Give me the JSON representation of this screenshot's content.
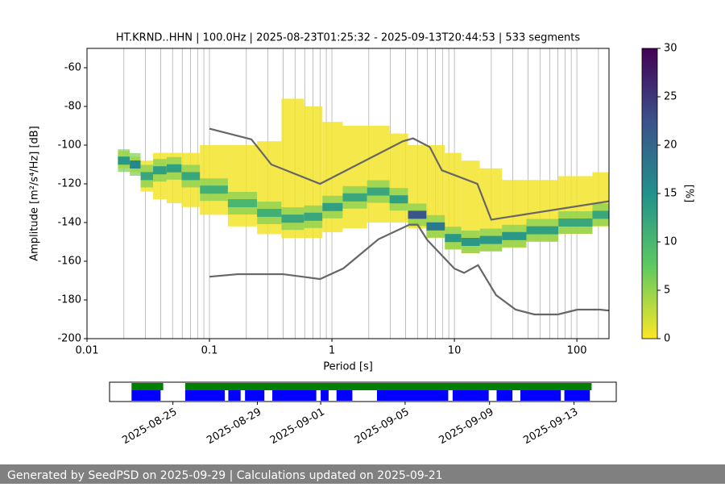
{
  "chart_data": {
    "type": "ppsd",
    "title": "HT.KRND..HHN | 100.0Hz | 2025-08-23T01:25:32 - 2025-09-13T20:44:53 | 533 segments",
    "xlabel": "Period [s]",
    "ylabel": "Amplitude [m²/s⁴/Hz] [dB]",
    "xlog": true,
    "xlim": [
      0.01,
      183
    ],
    "ylim": [
      -200,
      -50
    ],
    "xticks": [
      0.01,
      0.1,
      1,
      10,
      100
    ],
    "xgrid": [
      0.02,
      0.03,
      0.04,
      0.05,
      0.06,
      0.07,
      0.08,
      0.09,
      0.1,
      0.2,
      0.3,
      0.4,
      0.5,
      0.6,
      0.7,
      0.8,
      0.9,
      1,
      2,
      3,
      4,
      5,
      6,
      7,
      8,
      9,
      10,
      20,
      30,
      40,
      50,
      60,
      70,
      80,
      90,
      100,
      150
    ],
    "yticks": [
      -200,
      -180,
      -160,
      -140,
      -120,
      -100,
      -80,
      -60
    ],
    "histogram": {
      "x": [
        0.02,
        0.025,
        0.03,
        0.04,
        0.05,
        0.07,
        0.1,
        0.2,
        0.3,
        0.5,
        0.7,
        1,
        1.5,
        2.5,
        3.5,
        5,
        7,
        10,
        13,
        20,
        30,
        50,
        100,
        180
      ],
      "low": [
        -112,
        -114,
        -124,
        -128,
        -130,
        -132,
        -136,
        -142,
        -146,
        -148,
        -148,
        -145,
        -143,
        -140,
        -140,
        -143,
        -148,
        -154,
        -156,
        -155,
        -153,
        -150,
        -146,
        -142
      ],
      "high": [
        -103,
        -106,
        -108,
        -104,
        -104,
        -104,
        -100,
        -100,
        -98,
        -76,
        -80,
        -88,
        -90,
        -90,
        -94,
        -100,
        -100,
        -104,
        -108,
        -112,
        -118,
        -118,
        -116,
        -114
      ],
      "mode": [
        -108,
        -110,
        -116,
        -113,
        -112,
        -116,
        -123,
        -130,
        -135,
        -138,
        -137,
        -132,
        -127,
        -124,
        -128,
        -136,
        -142,
        -148,
        -150,
        -149,
        -147,
        -144,
        -140,
        -136
      ],
      "peak": [
        14,
        16,
        12,
        13,
        13,
        12,
        11,
        10,
        11,
        12,
        12,
        13,
        12,
        12,
        13,
        22,
        18,
        14,
        14,
        14,
        14,
        13,
        12,
        12
      ]
    },
    "noise_models": [
      {
        "color": "#666666",
        "x": [
          0.1,
          0.22,
          0.32,
          0.8,
          3.8,
          4.6,
          6.3,
          7.9,
          15.4,
          20,
          183
        ],
        "values": [
          -91.5,
          -97,
          -110,
          -120,
          -98,
          -96.5,
          -101,
          -113,
          -120,
          -138.5,
          -129
        ]
      },
      {
        "color": "#666666",
        "x": [
          0.1,
          0.17,
          0.4,
          0.8,
          1.24,
          2.4,
          4.3,
          5,
          6,
          10,
          12,
          15.6,
          21.9,
          31.6,
          45,
          70,
          101,
          154,
          183
        ],
        "values": [
          -168,
          -166.7,
          -166.7,
          -169.2,
          -163.7,
          -148.6,
          -141.1,
          -141.1,
          -149,
          -163.8,
          -166,
          -162,
          -177.5,
          -185,
          -187.5,
          -187.5,
          -185,
          -185,
          -185.5
        ]
      }
    ],
    "colorbar": {
      "label": "[%]",
      "lim": [
        0,
        30
      ],
      "ticks": [
        0,
        5,
        10,
        15,
        20,
        25,
        30
      ]
    },
    "timeline": {
      "xlim": [
        "2025-08-22",
        "2025-09-15"
      ],
      "xticks": [
        "2025-08-25",
        "2025-08-29",
        "2025-09-01",
        "2025-09-05",
        "2025-09-09",
        "2025-09-13"
      ],
      "data_spans": [
        [
          "2025-08-23T01:00",
          "2025-08-24T13:00"
        ],
        [
          "2025-08-25T14:00",
          "2025-09-13T20:00"
        ]
      ],
      "used_spans": [
        [
          "2025-08-23T01:00",
          "2025-08-24T10:00"
        ],
        [
          "2025-08-25T14:00",
          "2025-08-27T11:00"
        ],
        [
          "2025-08-27T15:00",
          "2025-08-28T05:00"
        ],
        [
          "2025-08-28T10:00",
          "2025-08-29T08:00"
        ],
        [
          "2025-08-29T17:00",
          "2025-08-31T19:00"
        ],
        [
          "2025-09-01T00:00",
          "2025-09-01T09:00"
        ],
        [
          "2025-09-01T18:00",
          "2025-09-02T12:00"
        ],
        [
          "2025-09-03T16:00",
          "2025-09-07T01:00"
        ],
        [
          "2025-09-07T06:00",
          "2025-09-08T23:00"
        ],
        [
          "2025-09-09T08:00",
          "2025-09-10T02:00"
        ],
        [
          "2025-09-10T11:00",
          "2025-09-12T09:00"
        ],
        [
          "2025-09-12T13:00",
          "2025-09-13T18:00"
        ]
      ],
      "data_color": "#008000",
      "used_color": "#0000ff"
    }
  },
  "footer": "Generated by SeedPSD on 2025-09-29 | Calculations updated on 2025-09-21"
}
